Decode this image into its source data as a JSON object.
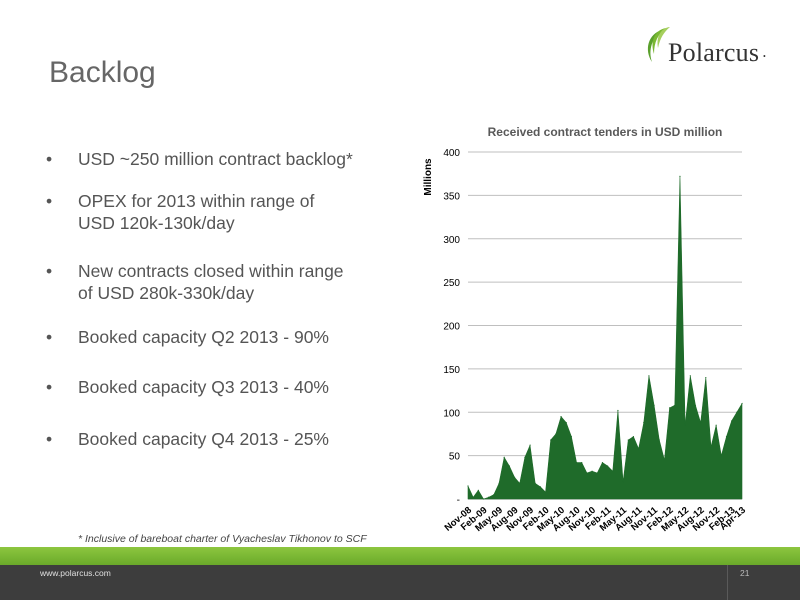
{
  "slide": {
    "title": "Backlog",
    "logo_text": "Polarcus",
    "footnote": "* Inclusive of bareboat charter of Vyacheslav Tikhonov to SCF",
    "footer_url": "www.polarcus.com",
    "page_number": "21",
    "bullet_glyph": "•",
    "bullets": [
      [
        "USD ~250 million contract backlog*"
      ],
      [
        "OPEX for 2013 within range of",
        "USD 120k-130k/day"
      ],
      [
        "New contracts closed within range",
        "of USD 280k-330k/day"
      ],
      [
        "Booked capacity Q2 2013 - 90%"
      ],
      [
        "Booked capacity Q3 2013 - 40%"
      ],
      [
        "Booked capacity Q4 2013 - 25%"
      ]
    ]
  },
  "colors": {
    "area": "#1f6b2a",
    "green_bar": "#7ab832",
    "footer": "#3d3d3d",
    "title": "#666666"
  },
  "chart_data": {
    "type": "area",
    "title": "Received contract tenders in USD million",
    "ylabel": "Millions",
    "ylim": [
      0,
      400
    ],
    "yticks": [
      0,
      50,
      100,
      150,
      200,
      250,
      300,
      350,
      400
    ],
    "ytick_labels": [
      "-",
      "50",
      "100",
      "150",
      "200",
      "250",
      "300",
      "350",
      "400"
    ],
    "grid": true,
    "x_tick_labels": [
      "Nov-08",
      "Feb-09",
      "May-09",
      "Aug-09",
      "Nov-09",
      "Feb-10",
      "May-10",
      "Aug-10",
      "Nov-10",
      "Feb-11",
      "May-11",
      "Aug-11",
      "Nov-11",
      "Feb-12",
      "May-12",
      "Aug-12",
      "Nov-12",
      "Feb-13",
      "Apr-13"
    ],
    "x": [
      "Nov-08",
      "Dec-08",
      "Jan-09",
      "Feb-09",
      "Mar-09",
      "Apr-09",
      "May-09",
      "Jun-09",
      "Jul-09",
      "Aug-09",
      "Sep-09",
      "Oct-09",
      "Nov-09",
      "Dec-09",
      "Jan-10",
      "Feb-10",
      "Mar-10",
      "Apr-10",
      "May-10",
      "Jun-10",
      "Jul-10",
      "Aug-10",
      "Sep-10",
      "Oct-10",
      "Nov-10",
      "Dec-10",
      "Jan-11",
      "Feb-11",
      "Mar-11",
      "Apr-11",
      "May-11",
      "Jun-11",
      "Jul-11",
      "Aug-11",
      "Sep-11",
      "Oct-11",
      "Nov-11",
      "Dec-11",
      "Jan-12",
      "Feb-12",
      "Mar-12",
      "Apr-12",
      "May-12",
      "Jun-12",
      "Jul-12",
      "Aug-12",
      "Sep-12",
      "Oct-12",
      "Nov-12",
      "Dec-12",
      "Jan-13",
      "Feb-13",
      "Mar-13",
      "Apr-13"
    ],
    "values": [
      15,
      2,
      10,
      0,
      2,
      5,
      18,
      48,
      38,
      25,
      18,
      48,
      62,
      18,
      14,
      8,
      68,
      75,
      95,
      88,
      72,
      42,
      42,
      30,
      32,
      30,
      42,
      38,
      32,
      102,
      20,
      68,
      72,
      58,
      88,
      142,
      108,
      68,
      45,
      105,
      108,
      372,
      85,
      142,
      108,
      88,
      140,
      60,
      85,
      50,
      72,
      90,
      100,
      110
    ]
  }
}
